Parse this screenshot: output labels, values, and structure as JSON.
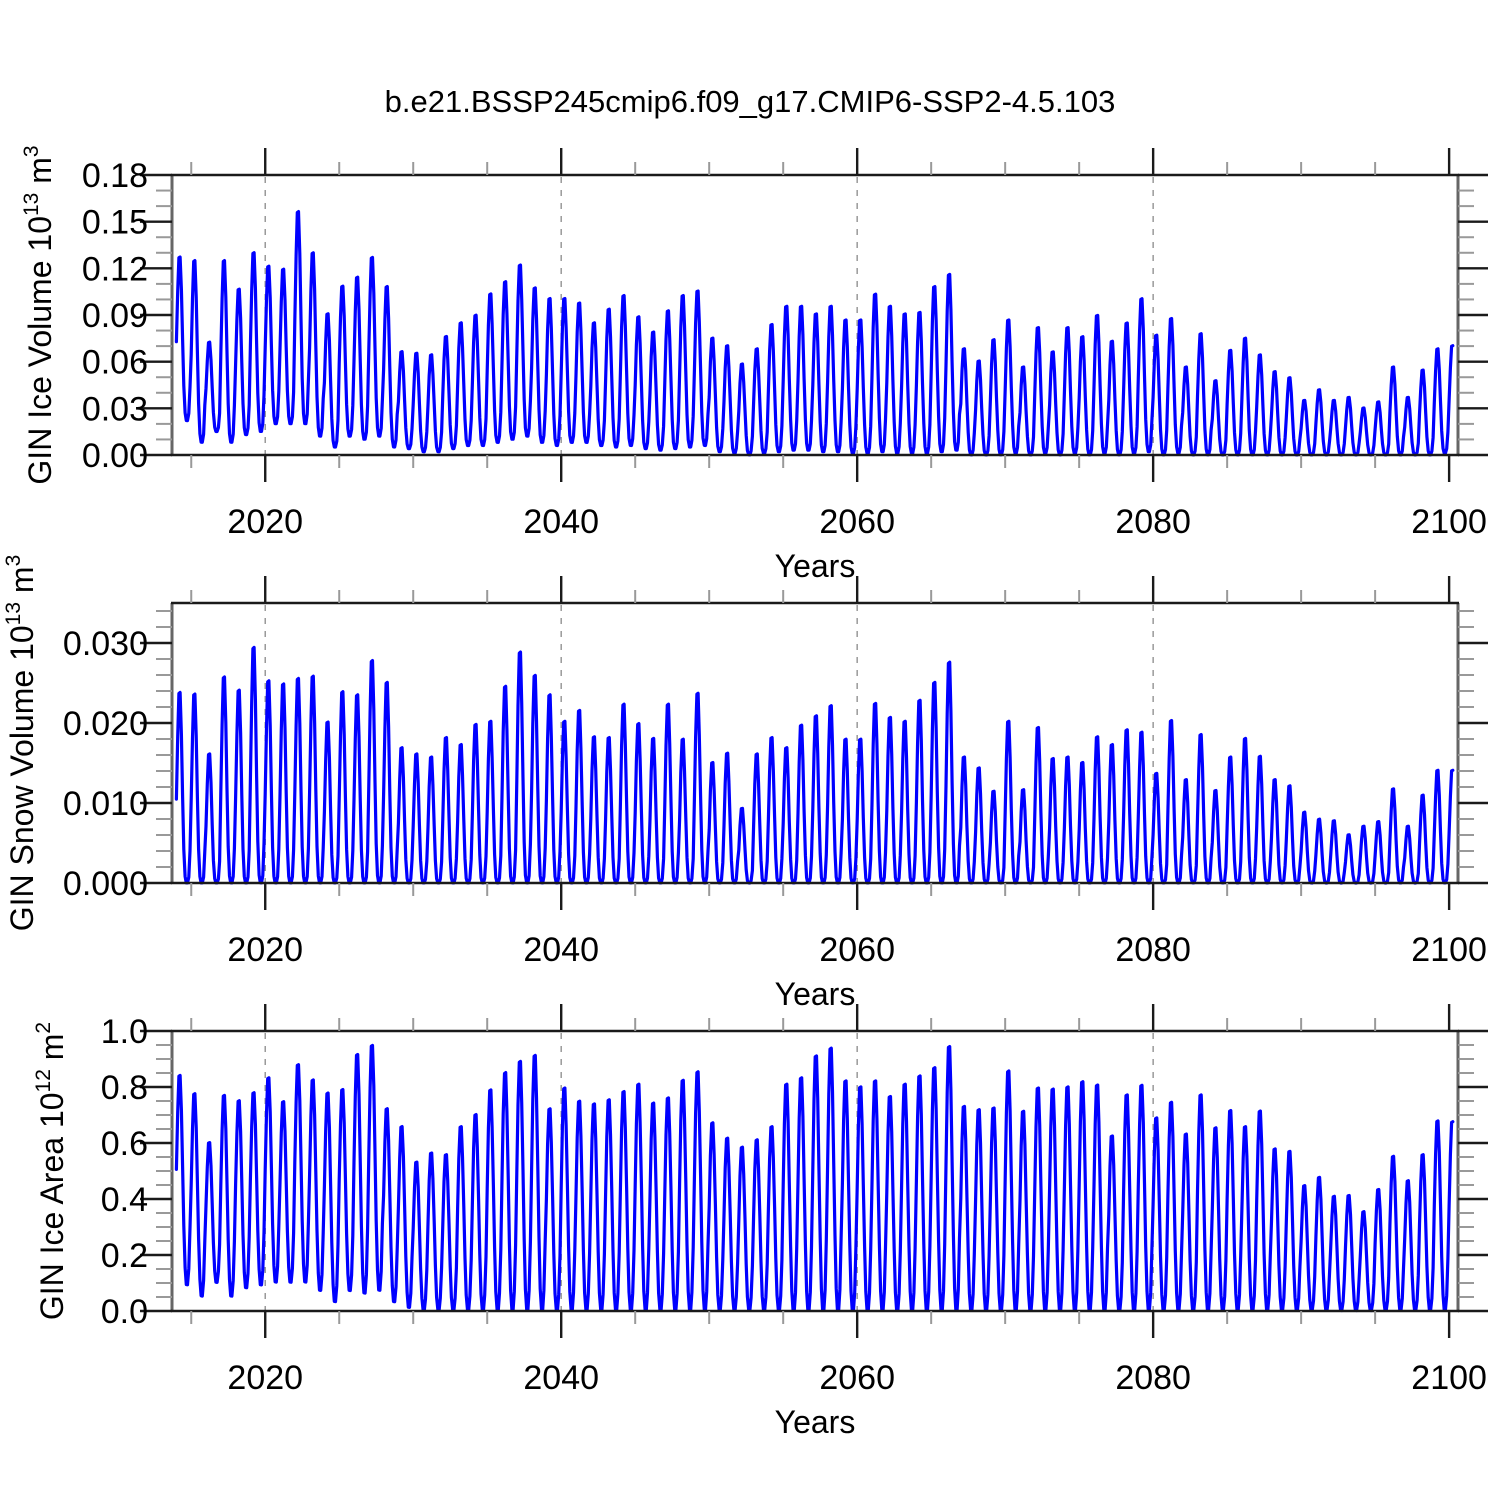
{
  "title": "b.e21.BSSP245cmip6.f09_g17.CMIP6-SSP2-4.5.103",
  "line_color": "#0000FF",
  "grid_color": "#999999",
  "frame_color": "#1a1a1a",
  "rail_color": "#666666",
  "minor_tick_color": "#999999",
  "chart_data": [
    {
      "type": "line",
      "id": "gin-ice-volume",
      "series_name": "GIN Ice Volume",
      "ylabel": "GIN Ice Volume 10^13 m^3",
      "ylabel_parts": [
        {
          "text": "GIN Ice Volume 10"
        },
        {
          "text": "13",
          "sup": true
        },
        {
          "text": " m"
        },
        {
          "text": "3",
          "sup": true
        }
      ],
      "xlabel": "Years",
      "xlim": [
        2013.7,
        2100.6
      ],
      "ylim": [
        0,
        0.18
      ],
      "yticks": [
        0,
        0.03,
        0.06,
        0.09,
        0.12,
        0.15,
        0.18
      ],
      "ytick_labels": [
        "0.00",
        "0.03",
        "0.06",
        "0.09",
        "0.12",
        "0.15",
        "0.18"
      ],
      "y_minor_step": 0.01,
      "xticks": [
        2020,
        2040,
        2060,
        2080,
        2100
      ],
      "xtick_labels": [
        "2020",
        "2040",
        "2060",
        "2080",
        "2100"
      ],
      "x_minor_step": 5,
      "grid_x": [
        2020,
        2040,
        2060,
        2080
      ],
      "grid_on": true,
      "legend": "none",
      "start_year": 2014,
      "end_time": 2100.3,
      "peak_phase": 0.21,
      "shape_power": 1.6,
      "annual_max": [
        0.13,
        0.128,
        0.074,
        0.128,
        0.109,
        0.133,
        0.124,
        0.122,
        0.16,
        0.133,
        0.093,
        0.111,
        0.117,
        0.13,
        0.111,
        0.068,
        0.067,
        0.066,
        0.078,
        0.087,
        0.092,
        0.106,
        0.114,
        0.125,
        0.11,
        0.103,
        0.103,
        0.1,
        0.087,
        0.096,
        0.105,
        0.091,
        0.081,
        0.095,
        0.105,
        0.108,
        0.077,
        0.072,
        0.06,
        0.07,
        0.086,
        0.098,
        0.098,
        0.093,
        0.098,
        0.089,
        0.089,
        0.106,
        0.098,
        0.093,
        0.094,
        0.111,
        0.119,
        0.07,
        0.062,
        0.076,
        0.089,
        0.058,
        0.084,
        0.068,
        0.084,
        0.078,
        0.092,
        0.075,
        0.087,
        0.103,
        0.079,
        0.09,
        0.058,
        0.08,
        0.049,
        0.069,
        0.077,
        0.066,
        0.055,
        0.051,
        0.036,
        0.043,
        0.036,
        0.038,
        0.031,
        0.035,
        0.058,
        0.038,
        0.056,
        0.07,
        0.072
      ],
      "annual_min": [
        0.022,
        0.008,
        0.015,
        0.008,
        0.013,
        0.015,
        0.02,
        0.02,
        0.02,
        0.012,
        0.005,
        0.012,
        0.01,
        0.012,
        0.005,
        0.004,
        0.002,
        0.002,
        0.004,
        0.006,
        0.006,
        0.008,
        0.01,
        0.012,
        0.008,
        0.006,
        0.008,
        0.008,
        0.006,
        0.005,
        0.006,
        0.004,
        0.003,
        0.004,
        0.005,
        0.006,
        0.002,
        0.001,
        0.0,
        0.001,
        0.002,
        0.003,
        0.003,
        0.002,
        0.002,
        0.001,
        0.001,
        0.002,
        0.001,
        0.001,
        0.001,
        0.002,
        0.003,
        0.0,
        0.0,
        0.0,
        0.001,
        0.0,
        0.001,
        0.0,
        0.001,
        0.0,
        0.001,
        0.0,
        0.001,
        0.002,
        0.0,
        0.001,
        0.0,
        0.0,
        0.0,
        0.0,
        0.0,
        0.0,
        0.0,
        0.0,
        0.0,
        0.0,
        0.0,
        0.0,
        0.0,
        0.0,
        0.0,
        0.0,
        0.0,
        0.001,
        0.002
      ]
    },
    {
      "type": "line",
      "id": "gin-snow-volume",
      "series_name": "GIN Snow Volume",
      "ylabel": "GIN Snow Volume 10^13 m^3",
      "ylabel_parts": [
        {
          "text": "GIN Snow Volume 10"
        },
        {
          "text": "13",
          "sup": true
        },
        {
          "text": " m"
        },
        {
          "text": "3",
          "sup": true
        }
      ],
      "xlabel": "Years",
      "xlim": [
        2013.7,
        2100.6
      ],
      "ylim": [
        0,
        0.035
      ],
      "yticks": [
        0,
        0.01,
        0.02,
        0.03
      ],
      "ytick_labels": [
        "0.000",
        "0.010",
        "0.020",
        "0.030"
      ],
      "y_minor_step": 0.002,
      "xticks": [
        2020,
        2040,
        2060,
        2080,
        2100
      ],
      "xtick_labels": [
        "2020",
        "2040",
        "2060",
        "2080",
        "2100"
      ],
      "x_minor_step": 5,
      "grid_x": [
        2020,
        2040,
        2060,
        2080
      ],
      "grid_on": true,
      "legend": "none",
      "start_year": 2014,
      "end_time": 2100.3,
      "peak_phase": 0.21,
      "shape_power": 1.8,
      "annual_max": [
        0.0245,
        0.0243,
        0.0166,
        0.0265,
        0.0248,
        0.0303,
        0.026,
        0.0256,
        0.0263,
        0.0266,
        0.0207,
        0.0246,
        0.0242,
        0.0286,
        0.0258,
        0.0174,
        0.0166,
        0.0162,
        0.0187,
        0.0178,
        0.0204,
        0.0208,
        0.0253,
        0.0297,
        0.0267,
        0.0242,
        0.0208,
        0.0222,
        0.0188,
        0.0187,
        0.023,
        0.0205,
        0.0186,
        0.023,
        0.0185,
        0.0244,
        0.0155,
        0.0167,
        0.0096,
        0.0166,
        0.0187,
        0.0174,
        0.0203,
        0.0215,
        0.0228,
        0.0185,
        0.0185,
        0.0231,
        0.0213,
        0.0208,
        0.0235,
        0.0258,
        0.0284,
        0.0162,
        0.0148,
        0.0118,
        0.0208,
        0.012,
        0.02,
        0.016,
        0.0162,
        0.0155,
        0.0188,
        0.0178,
        0.0197,
        0.0194,
        0.0141,
        0.0209,
        0.0133,
        0.0191,
        0.0119,
        0.0162,
        0.0186,
        0.0163,
        0.0133,
        0.0125,
        0.0091,
        0.0082,
        0.008,
        0.0062,
        0.0073,
        0.0079,
        0.0121,
        0.0073,
        0.0113,
        0.0145,
        0.0145
      ],
      "annual_min": 0
    },
    {
      "type": "line",
      "id": "gin-ice-area",
      "series_name": "GIN Ice Area",
      "ylabel": "GIN Ice Area 10^12 m^2",
      "ylabel_parts": [
        {
          "text": "GIN Ice Area 10"
        },
        {
          "text": "12",
          "sup": true
        },
        {
          "text": " m"
        },
        {
          "text": "2",
          "sup": true
        }
      ],
      "xlabel": "Years",
      "xlim": [
        2013.7,
        2100.6
      ],
      "ylim": [
        0,
        1.0
      ],
      "yticks": [
        0,
        0.2,
        0.4,
        0.6,
        0.8,
        1.0
      ],
      "ytick_labels": [
        "0.0",
        "0.2",
        "0.4",
        "0.6",
        "0.8",
        "1.0"
      ],
      "y_minor_step": 0.05,
      "xticks": [
        2020,
        2040,
        2060,
        2080,
        2100
      ],
      "xtick_labels": [
        "2020",
        "2040",
        "2060",
        "2080",
        "2100"
      ],
      "x_minor_step": 5,
      "grid_x": [
        2020,
        2040,
        2060,
        2080
      ],
      "grid_on": true,
      "legend": "none",
      "start_year": 2014,
      "end_time": 2100.3,
      "peak_phase": 0.21,
      "shape_power": 1.3,
      "annual_max": [
        0.857,
        0.791,
        0.612,
        0.785,
        0.765,
        0.794,
        0.848,
        0.761,
        0.896,
        0.841,
        0.794,
        0.806,
        0.934,
        0.967,
        0.737,
        0.672,
        0.543,
        0.576,
        0.57,
        0.672,
        0.716,
        0.806,
        0.869,
        0.91,
        0.932,
        0.737,
        0.813,
        0.765,
        0.755,
        0.77,
        0.8,
        0.827,
        0.758,
        0.777,
        0.841,
        0.872,
        0.686,
        0.63,
        0.597,
        0.624,
        0.672,
        0.827,
        0.85,
        0.93,
        0.958,
        0.839,
        0.817,
        0.839,
        0.782,
        0.827,
        0.857,
        0.887,
        0.964,
        0.746,
        0.734,
        0.74,
        0.875,
        0.728,
        0.813,
        0.809,
        0.817,
        0.836,
        0.824,
        0.638,
        0.788,
        0.823,
        0.704,
        0.761,
        0.645,
        0.788,
        0.668,
        0.731,
        0.672,
        0.729,
        0.591,
        0.582,
        0.457,
        0.487,
        0.418,
        0.421,
        0.362,
        0.443,
        0.564,
        0.475,
        0.57,
        0.693,
        0.69
      ],
      "annual_min": [
        0.09,
        0.05,
        0.1,
        0.05,
        0.08,
        0.09,
        0.1,
        0.1,
        0.1,
        0.07,
        0.03,
        0.07,
        0.06,
        0.07,
        0.03,
        0.01,
        0,
        0,
        0,
        0,
        0,
        0,
        0,
        0,
        0,
        0,
        0,
        0,
        0,
        0,
        0,
        0,
        0,
        0,
        0,
        0,
        0,
        0,
        0,
        0,
        0,
        0,
        0,
        0,
        0,
        0,
        0,
        0,
        0,
        0,
        0,
        0,
        0,
        0,
        0,
        0,
        0,
        0,
        0,
        0,
        0,
        0,
        0,
        0,
        0,
        0,
        0,
        0,
        0,
        0,
        0,
        0,
        0,
        0,
        0,
        0,
        0,
        0,
        0,
        0,
        0,
        0,
        0,
        0,
        0,
        0,
        0
      ]
    }
  ]
}
